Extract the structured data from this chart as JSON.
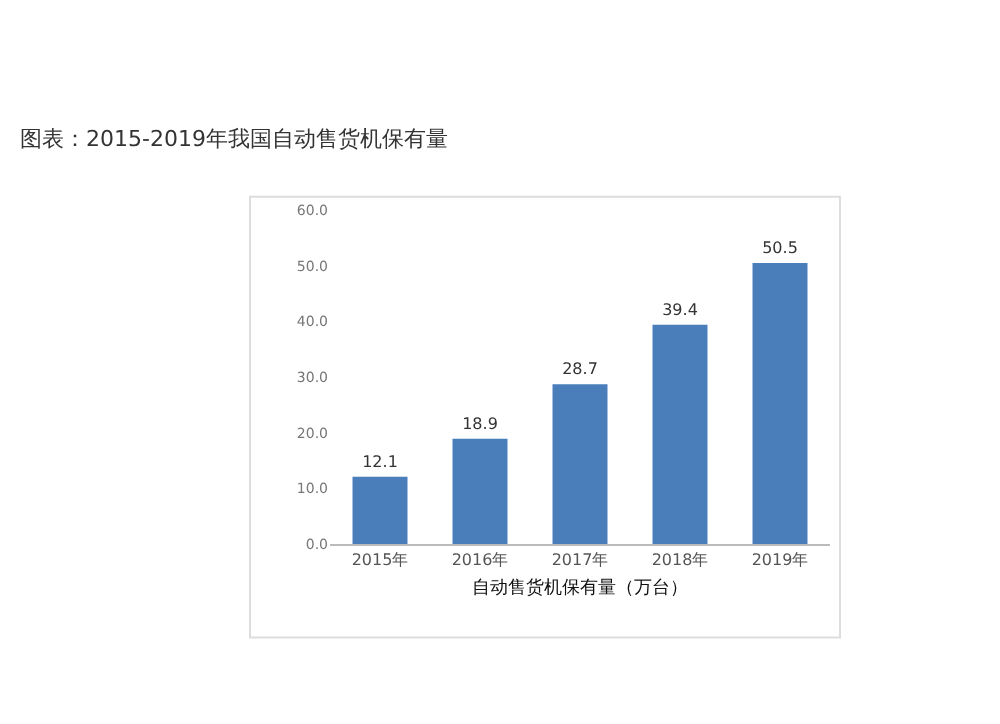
{
  "chart_data": {
    "type": "bar",
    "title": "图表：2015-2019年我国自动售货机保有量",
    "xlabel": "自动售货机保有量（万台）",
    "categories": [
      "2015年",
      "2016年",
      "2017年",
      "2018年",
      "2019年"
    ],
    "values": [
      12.1,
      18.9,
      28.7,
      39.4,
      50.5
    ],
    "color": "#4a7ebb",
    "ylim": [
      0,
      60
    ],
    "yticks": [
      {
        "value": 0,
        "label": "0.0"
      },
      {
        "value": 10,
        "label": "10.0"
      },
      {
        "value": 20,
        "label": "20.0"
      },
      {
        "value": 30,
        "label": "30.0"
      },
      {
        "value": 40,
        "label": "40.0"
      },
      {
        "value": 50,
        "label": "50.0"
      },
      {
        "value": 60,
        "label": "60.0"
      }
    ],
    "data_labels": true,
    "grid": false,
    "legend": false
  }
}
